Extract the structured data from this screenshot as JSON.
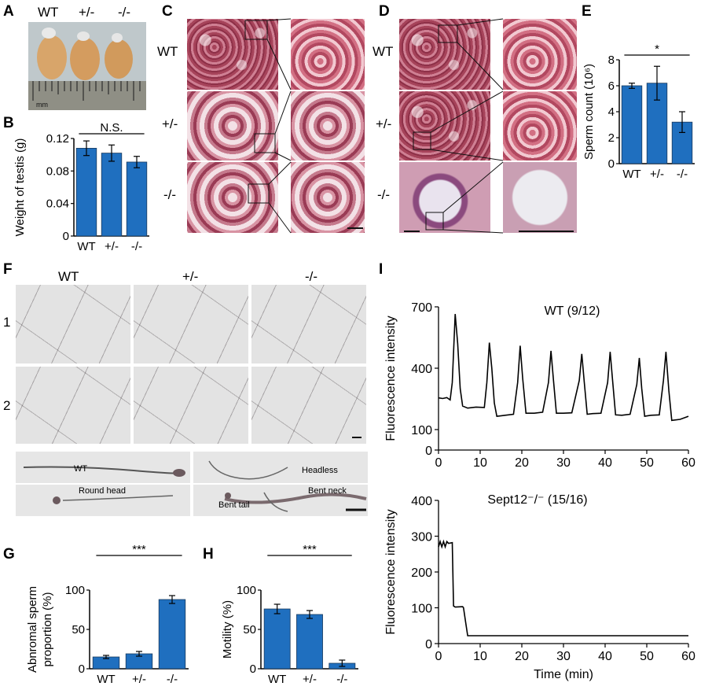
{
  "panels": {
    "A": {
      "label": "A",
      "genotypes": [
        "WT",
        "+/-",
        "-/-"
      ],
      "ruler_unit": "mm"
    },
    "B": {
      "label": "B"
    },
    "C": {
      "label": "C",
      "rows": [
        "WT",
        "+/-",
        "-/-"
      ]
    },
    "D": {
      "label": "D",
      "rows": [
        "WT",
        "+/-",
        "-/-"
      ]
    },
    "E": {
      "label": "E"
    },
    "F": {
      "label": "F",
      "columns": [
        "WT",
        "+/-",
        "-/-"
      ],
      "rows": [
        "1",
        "2"
      ],
      "morphology_labels": [
        "WT",
        "Headless",
        "Round head",
        "Bent neck",
        "Bent tail"
      ]
    },
    "G": {
      "label": "G"
    },
    "H": {
      "label": "H"
    },
    "I": {
      "label": "I"
    }
  },
  "chart_data": [
    {
      "id": "B",
      "type": "bar",
      "categories": [
        "WT",
        "+/-",
        "-/-"
      ],
      "values": [
        0.108,
        0.102,
        0.091
      ],
      "errors": [
        0.009,
        0.01,
        0.007
      ],
      "ylabel": "Weight of testis (g)",
      "ylim": [
        0,
        0.12
      ],
      "yticks": [
        "0",
        "0.04",
        "0.08",
        "0.12"
      ],
      "annotation": "N.S.",
      "color": "#1f6fbf"
    },
    {
      "id": "E",
      "type": "bar",
      "categories": [
        "WT",
        "+/-",
        "-/-"
      ],
      "values": [
        6.0,
        6.2,
        3.2
      ],
      "errors": [
        0.2,
        1.3,
        0.8
      ],
      "ylabel": "Sperm count (10⁶)",
      "ylim": [
        0,
        8
      ],
      "yticks": [
        "0",
        "2",
        "4",
        "6",
        "8"
      ],
      "annotation": "*",
      "color": "#1f6fbf"
    },
    {
      "id": "G",
      "type": "bar",
      "categories": [
        "WT",
        "+/-",
        "-/-"
      ],
      "values": [
        15,
        19,
        88
      ],
      "errors": [
        2,
        3,
        5
      ],
      "ylabel": "Abnromal sperm proportion (%)",
      "ylim": [
        0,
        100
      ],
      "yticks": [
        "0",
        "50",
        "100"
      ],
      "annotation": "***",
      "color": "#1f6fbf"
    },
    {
      "id": "H",
      "type": "bar",
      "categories": [
        "WT",
        "+/-",
        "-/-"
      ],
      "values": [
        76,
        69,
        7
      ],
      "errors": [
        6,
        5,
        4
      ],
      "ylabel": "Motility (%)",
      "ylim": [
        0,
        100
      ],
      "yticks": [
        "0",
        "50",
        "100"
      ],
      "annotation": "***",
      "color": "#1f6fbf"
    },
    {
      "id": "I-top",
      "type": "line",
      "title": "WT (9/12)",
      "ylabel": "Fluorescence intensity",
      "xlim": [
        0,
        60
      ],
      "xticks": [
        "0",
        "10",
        "20",
        "30",
        "40",
        "50",
        "60"
      ],
      "yticks": [
        {
          "v": 0,
          "t": "0"
        },
        {
          "v": 100,
          "t": "100"
        },
        {
          "v": 400,
          "t": "400"
        },
        {
          "v": 700,
          "t": "700"
        }
      ],
      "ylim": [
        0,
        700
      ],
      "x": [
        0,
        1,
        2,
        2.8,
        3.3,
        4.0,
        4.6,
        5.2,
        5.8,
        7,
        9,
        11,
        11.6,
        12.2,
        12.8,
        13.4,
        14,
        16,
        18,
        19.0,
        19.6,
        20.2,
        21,
        23,
        25,
        26.4,
        27.0,
        27.6,
        28.3,
        30,
        32,
        33.8,
        34.4,
        35.0,
        35.7,
        37,
        39,
        40.6,
        41.2,
        41.8,
        42.5,
        44,
        46,
        47.6,
        48.2,
        48.8,
        49.5,
        51,
        53,
        54.0,
        54.6,
        55.3,
        56,
        58,
        60
      ],
      "y": [
        255,
        252,
        256,
        245,
        330,
        665,
        520,
        300,
        215,
        205,
        210,
        208,
        330,
        525,
        400,
        230,
        165,
        170,
        175,
        330,
        510,
        350,
        180,
        180,
        185,
        330,
        485,
        340,
        180,
        180,
        182,
        340,
        470,
        330,
        175,
        178,
        180,
        330,
        480,
        340,
        172,
        170,
        175,
        320,
        450,
        300,
        165,
        170,
        172,
        340,
        480,
        290,
        145,
        150,
        165
      ]
    },
    {
      "id": "I-bottom",
      "type": "line",
      "title": "Sept12⁻/⁻ (15/16)",
      "ylabel": "Fluorescence intensity",
      "xlabel": "Time (min)",
      "xlim": [
        0,
        60
      ],
      "xticks": [
        "0",
        "10",
        "20",
        "30",
        "40",
        "50",
        "60"
      ],
      "yticks": [
        {
          "v": 0,
          "t": "0"
        },
        {
          "v": 100,
          "t": "100"
        },
        {
          "v": 200,
          "t": "200"
        },
        {
          "v": 300,
          "t": "300"
        },
        {
          "v": 400,
          "t": "400"
        }
      ],
      "ylim": [
        0,
        400
      ],
      "x": [
        0,
        0.4,
        0.8,
        1.2,
        1.6,
        2.0,
        2.4,
        3.3,
        3.6,
        4.0,
        5.8,
        6.0,
        6.5,
        7.0,
        10,
        20,
        30,
        40,
        50,
        60
      ],
      "y": [
        270,
        285,
        270,
        285,
        270,
        285,
        280,
        282,
        105,
        102,
        103,
        100,
        60,
        22,
        22,
        22,
        22,
        22,
        22,
        22
      ]
    }
  ]
}
